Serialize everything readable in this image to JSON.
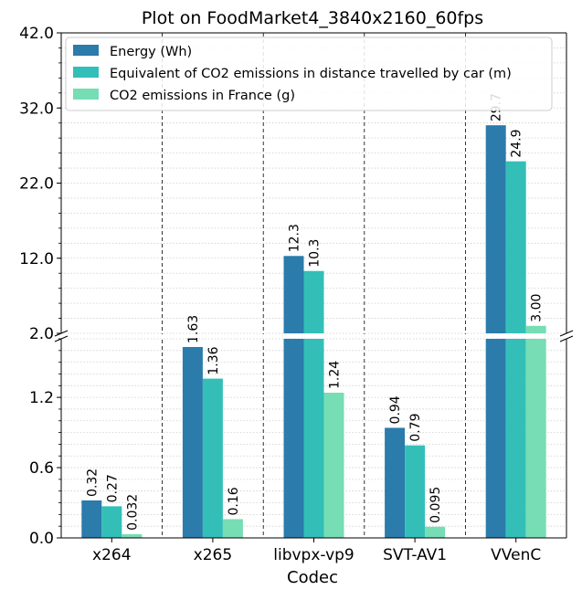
{
  "chart_data": {
    "type": "bar",
    "title": "Plot on FoodMarket4_3840x2160_60fps",
    "xlabel": "Codec",
    "ylabel": "",
    "categories": [
      "x264",
      "x265",
      "libvpx-vp9",
      "SVT-AV1",
      "VVenC"
    ],
    "series": [
      {
        "name": "Energy (Wh)",
        "color": "#2b7bab",
        "values": [
          0.32,
          1.63,
          12.3,
          0.94,
          29.7
        ],
        "labels": [
          "0.32",
          "1.63",
          "12.3",
          "0.94",
          "29.7"
        ]
      },
      {
        "name": "Equivalent of CO2 emissions in distance travelled by car (m)",
        "color": "#33bfb8",
        "values": [
          0.27,
          1.36,
          10.3,
          0.79,
          24.9
        ],
        "labels": [
          "0.27",
          "1.36",
          "10.3",
          "0.79",
          "24.9"
        ]
      },
      {
        "name": "CO2 emissions in France (g)",
        "color": "#77ddb4",
        "values": [
          0.032,
          0.16,
          1.24,
          0.095,
          3.0
        ],
        "labels": [
          "0.032",
          "0.16",
          "1.24",
          "0.095",
          "3.00"
        ]
      }
    ],
    "broken_axis": {
      "lower": {
        "ylim": [
          0.0,
          1.7
        ],
        "ticks": [
          "0.0",
          "0.6",
          "1.2"
        ]
      },
      "upper": {
        "ylim": [
          2.0,
          42.0
        ],
        "ticks": [
          "2.0",
          "12.0",
          "22.0",
          "32.0",
          "42.0"
        ]
      }
    },
    "grid": "dotted minor y gridlines; dashed vertical separators between categories",
    "legend": {
      "placement": "top-left"
    }
  }
}
